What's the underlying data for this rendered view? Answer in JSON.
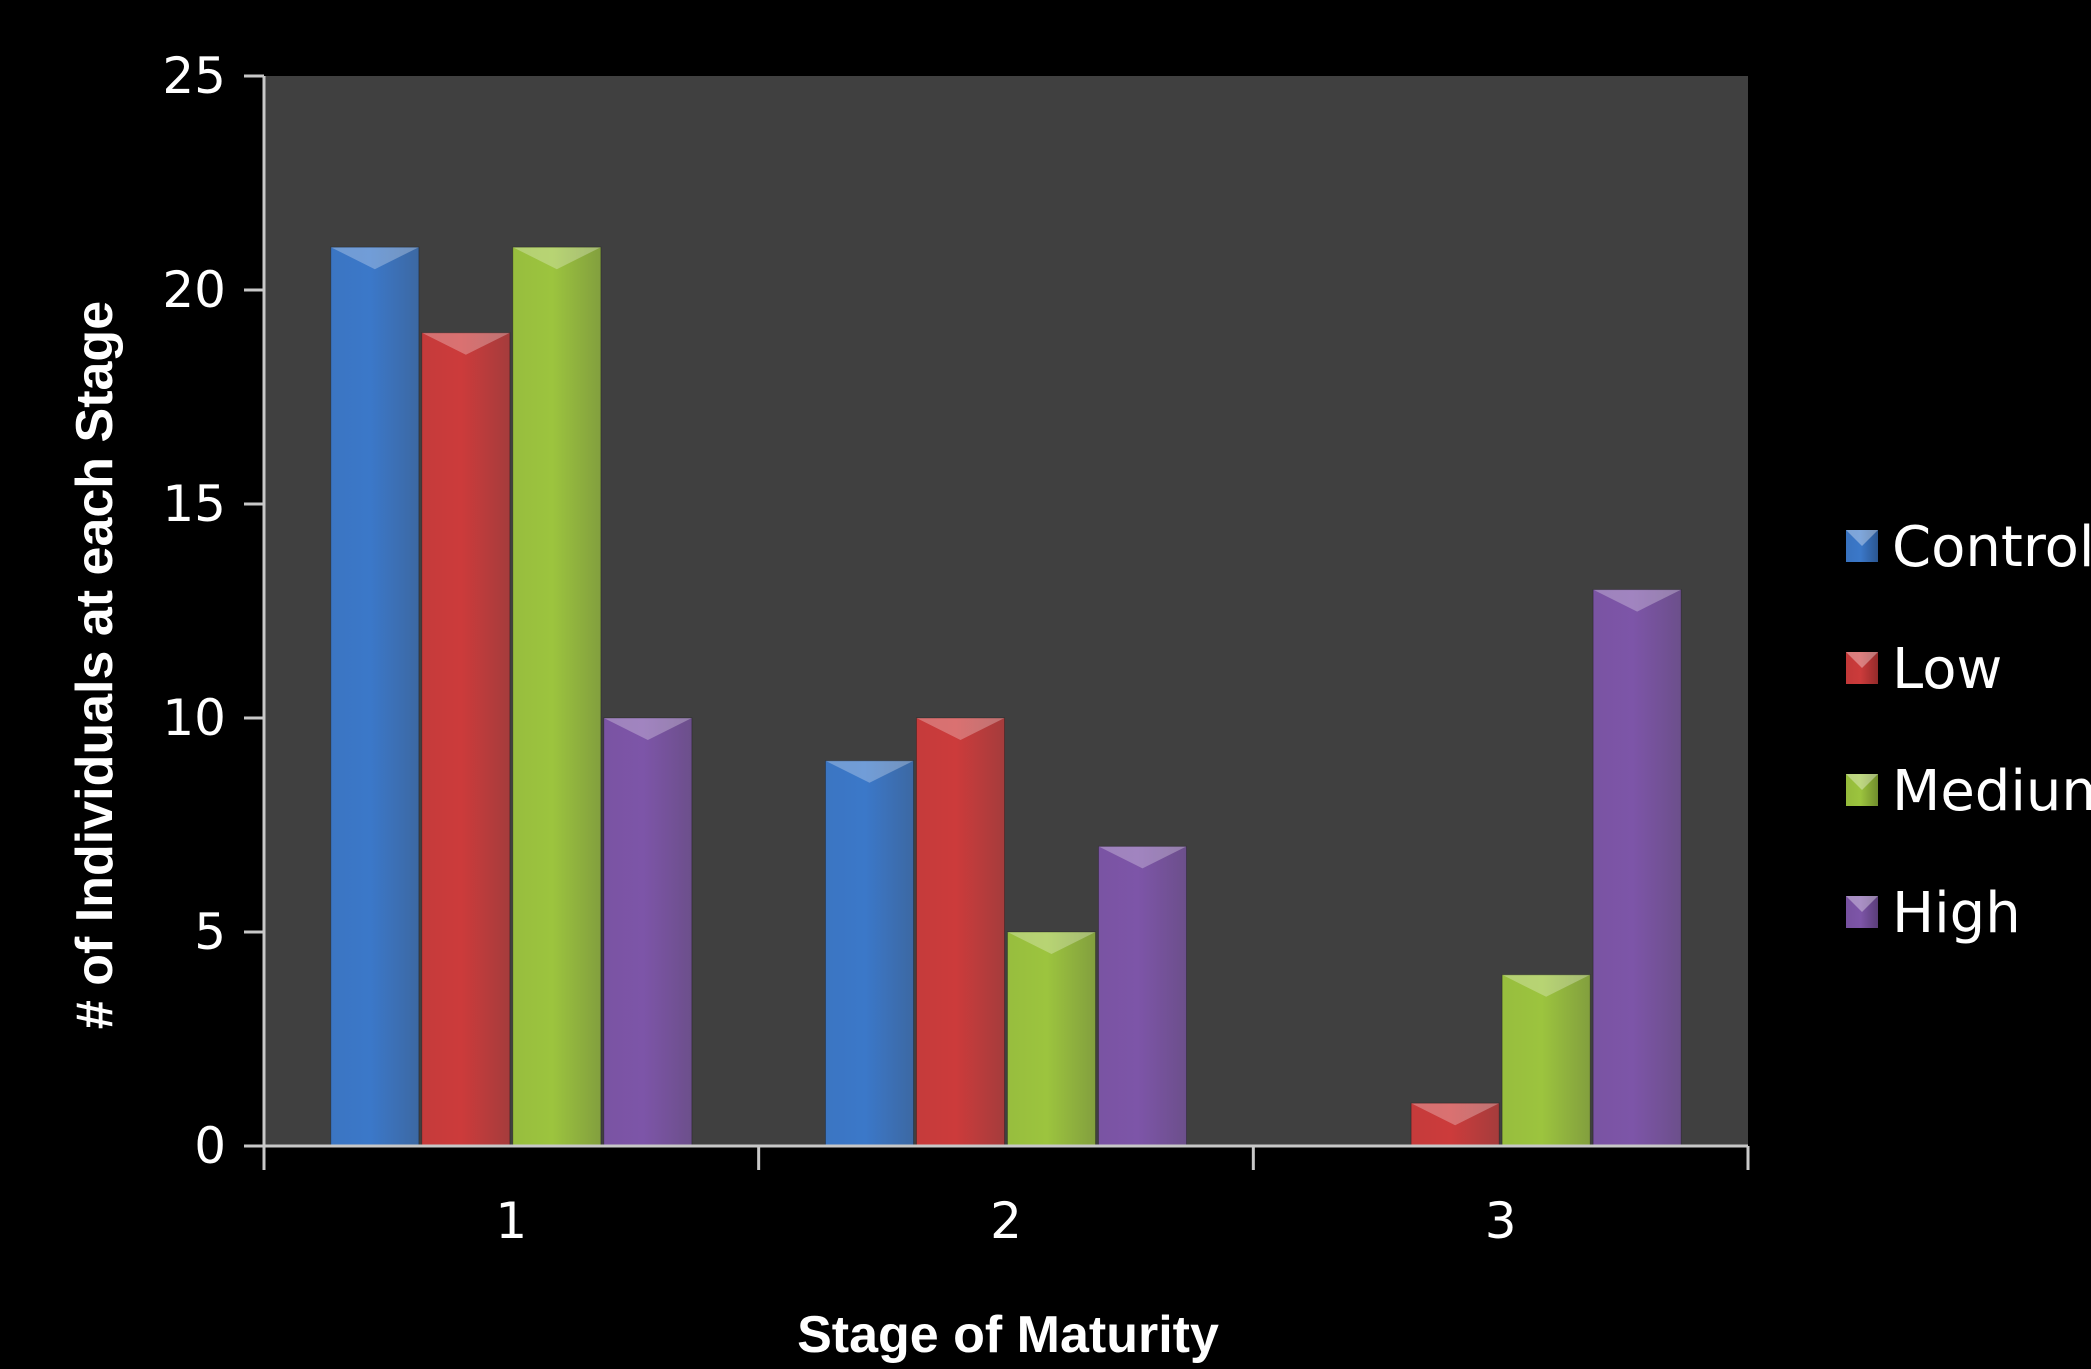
{
  "chart_data": {
    "type": "bar",
    "title": "",
    "xlabel": "Stage of Maturity",
    "ylabel": "# of Individuals at each Stage",
    "categories": [
      "1",
      "2",
      "3"
    ],
    "ylim": [
      0,
      25
    ],
    "yticks": [
      "0",
      "5",
      "10",
      "15",
      "20",
      "25"
    ],
    "grid": false,
    "legend_position": "right",
    "series": [
      {
        "name": "Control",
        "color": "#3b78c9",
        "values": [
          21,
          9,
          0
        ]
      },
      {
        "name": "Low",
        "color": "#cc3b3b",
        "values": [
          19,
          10,
          1
        ]
      },
      {
        "name": "Medium",
        "color": "#9cc43e",
        "values": [
          21,
          5,
          4
        ]
      },
      {
        "name": "High",
        "color": "#7d55a8",
        "values": [
          10,
          7,
          13
        ]
      }
    ],
    "plot_background": "#404040",
    "page_background": "#000000"
  }
}
